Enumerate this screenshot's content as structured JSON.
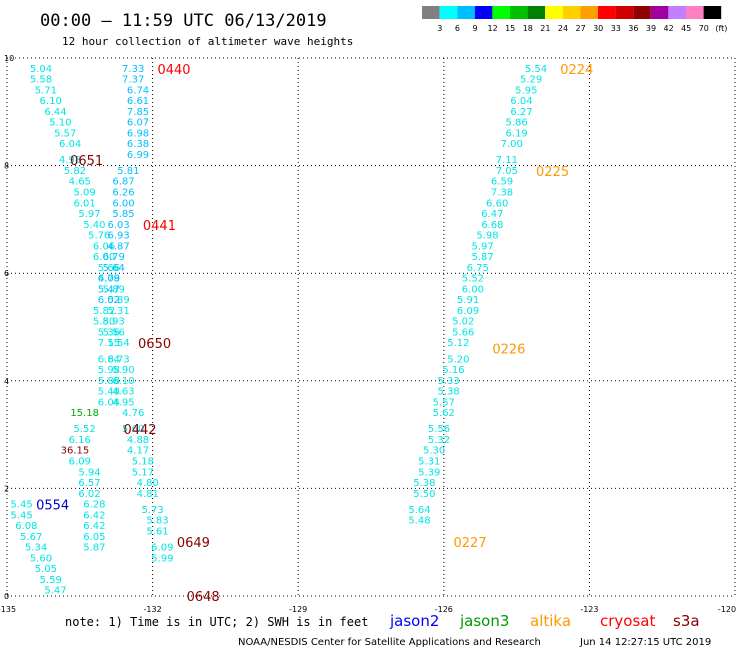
{
  "header": {
    "title": "00:00 – 11:59 UTC 06/13/2019",
    "subtitle": "12 hour collection of altimeter wave heights"
  },
  "legend": {
    "labels": [
      "3",
      "6",
      "9",
      "12",
      "15",
      "18",
      "21",
      "24",
      "27",
      "30",
      "33",
      "36",
      "39",
      "42",
      "45",
      "70",
      "(ft)"
    ],
    "colors": [
      "#808080",
      "#00ffff",
      "#00bfff",
      "#0000ff",
      "#00ff00",
      "#00c000",
      "#008000",
      "#ffff00",
      "#ffd000",
      "#ffa000",
      "#ff0000",
      "#d00000",
      "#900000",
      "#a000a0",
      "#c080ff",
      "#ff80c0",
      "#000000"
    ]
  },
  "satellites": [
    {
      "name": "jason2",
      "color": "#0000ff"
    },
    {
      "name": "jason3",
      "color": "#009900"
    },
    {
      "name": "altika",
      "color": "#ff9900"
    },
    {
      "name": "cryosat",
      "color": "#ff0000"
    },
    {
      "name": "s3a",
      "color": "#880000"
    }
  ],
  "footer": {
    "note": "note: 1) Time is in UTC; 2) SWH is in feet",
    "credit": "NOAA/NESDIS Center for Satellite Applications and Research",
    "timestamp": "Jun 14 12:27:15 UTC 2019"
  },
  "chart_data": {
    "type": "scatter",
    "xlim": [
      -135,
      -120
    ],
    "ylim": [
      0,
      10
    ],
    "x_ticks": [
      "-135",
      "-132",
      "-129",
      "-126",
      "-123",
      "-120"
    ],
    "y_ticks": [
      "0",
      "2",
      "4",
      "6",
      "8",
      "10"
    ],
    "grid": true,
    "colors": {
      "low": "#00e5e5",
      "mid": "#00bfff",
      "s3a": "#880000",
      "cryosat": "#ff0000",
      "altika": "#ff9900",
      "jason2": "#0000cc",
      "green": "#00aa00"
    },
    "point_series": [
      {
        "name": "A",
        "points": [
          [
            -134.3,
            9.8,
            "5.04",
            "low"
          ],
          [
            -134.3,
            9.6,
            "5.58",
            "low"
          ],
          [
            -134.2,
            9.4,
            "5.71",
            "low"
          ],
          [
            -134.1,
            9.2,
            "6.10",
            "low"
          ],
          [
            -134.0,
            9.0,
            "6.44",
            "low"
          ],
          [
            -133.9,
            8.8,
            "5.10",
            "low"
          ],
          [
            -133.8,
            8.6,
            "5.57",
            "low"
          ],
          [
            -133.7,
            8.4,
            "6.04",
            "low"
          ],
          [
            -133.7,
            8.1,
            "4.98",
            "low"
          ],
          [
            -133.6,
            7.9,
            "5.82",
            "low"
          ],
          [
            -133.5,
            7.7,
            "4.65",
            "low"
          ],
          [
            -133.4,
            7.5,
            "5.09",
            "low"
          ],
          [
            -133.4,
            7.3,
            "6.01",
            "low"
          ],
          [
            -133.3,
            7.1,
            "5.97",
            "low"
          ],
          [
            -133.2,
            6.9,
            "5.40",
            "low"
          ],
          [
            -133.1,
            6.7,
            "5.76",
            "low"
          ],
          [
            -133.0,
            6.5,
            "6.06",
            "low"
          ],
          [
            -133.0,
            6.3,
            "6.00",
            "low"
          ],
          [
            -132.9,
            6.1,
            "5.66",
            "low"
          ],
          [
            -132.9,
            5.9,
            "4.78",
            "low"
          ],
          [
            -132.8,
            5.7,
            "5.89",
            "low"
          ],
          [
            -132.7,
            5.5,
            "5.89",
            "low"
          ],
          [
            -132.7,
            5.3,
            "5.31",
            "low"
          ],
          [
            -132.8,
            5.1,
            "5.93",
            "low"
          ],
          [
            -132.8,
            4.9,
            "5.56",
            "low"
          ],
          [
            -132.9,
            4.7,
            "7.15",
            "low"
          ],
          [
            -132.9,
            4.4,
            "6.84",
            "low"
          ],
          [
            -132.9,
            4.2,
            "5.98",
            "low"
          ],
          [
            -132.9,
            4.0,
            "5.88",
            "low"
          ],
          [
            -132.9,
            3.8,
            "5.48",
            "low"
          ],
          [
            -132.9,
            3.6,
            "6.04",
            "low"
          ],
          [
            -133.4,
            3.4,
            "15.18",
            "green"
          ],
          [
            -133.4,
            3.1,
            "5.52",
            "low"
          ],
          [
            -133.5,
            2.9,
            "6.16",
            "low"
          ],
          [
            -133.6,
            2.7,
            "36.15",
            "s3a"
          ],
          [
            -133.5,
            2.5,
            "6.09",
            "low"
          ],
          [
            -133.3,
            2.3,
            "5.94",
            "low"
          ],
          [
            -133.3,
            2.1,
            "6.57",
            "low"
          ],
          [
            -133.3,
            1.9,
            "6.02",
            "low"
          ],
          [
            -133.2,
            1.7,
            "6.28",
            "low"
          ],
          [
            -133.2,
            1.5,
            "6.42",
            "low"
          ],
          [
            -133.2,
            1.3,
            "6.42",
            "low"
          ],
          [
            -133.2,
            1.1,
            "6.05",
            "low"
          ],
          [
            -133.2,
            0.9,
            "5.87",
            "low"
          ]
        ]
      },
      {
        "name": "B",
        "points": [
          [
            -132.4,
            9.8,
            "7.33",
            "mid"
          ],
          [
            -132.4,
            9.6,
            "7.37",
            "mid"
          ],
          [
            -132.3,
            9.4,
            "6.74",
            "mid"
          ],
          [
            -132.3,
            9.2,
            "6.61",
            "mid"
          ],
          [
            -132.3,
            9.0,
            "7.85",
            "mid"
          ],
          [
            -132.3,
            8.8,
            "6.07",
            "mid"
          ],
          [
            -132.3,
            8.6,
            "6.98",
            "mid"
          ],
          [
            -132.3,
            8.4,
            "6.38",
            "mid"
          ],
          [
            -132.3,
            8.2,
            "6.99",
            "mid"
          ],
          [
            -132.5,
            7.9,
            "5.81",
            "mid"
          ],
          [
            -132.6,
            7.7,
            "6.87",
            "mid"
          ],
          [
            -132.6,
            7.5,
            "6.26",
            "mid"
          ],
          [
            -132.6,
            7.3,
            "6.00",
            "mid"
          ],
          [
            -132.6,
            7.1,
            "5.85",
            "mid"
          ],
          [
            -132.7,
            6.9,
            "6.03",
            "mid"
          ],
          [
            -132.7,
            6.7,
            "6.93",
            "mid"
          ],
          [
            -132.7,
            6.5,
            "4.87",
            "mid"
          ],
          [
            -132.8,
            6.3,
            "6.79",
            "mid"
          ],
          [
            -132.8,
            6.1,
            "5.64",
            "mid"
          ],
          [
            -132.9,
            5.9,
            "6.09",
            "mid"
          ],
          [
            -132.9,
            5.7,
            "5.47",
            "mid"
          ],
          [
            -132.9,
            5.5,
            "6.02",
            "mid"
          ],
          [
            -133.0,
            5.3,
            "5.82",
            "low"
          ],
          [
            -133.0,
            5.1,
            "5.80",
            "low"
          ],
          [
            -132.9,
            4.9,
            "5.36",
            "low"
          ],
          [
            -132.7,
            4.7,
            "5.54",
            "low"
          ],
          [
            -132.7,
            4.4,
            "6.73",
            "low"
          ],
          [
            -132.6,
            4.2,
            "5.90",
            "low"
          ],
          [
            -132.6,
            4.0,
            "6.10",
            "low"
          ],
          [
            -132.6,
            3.8,
            "4.63",
            "low"
          ],
          [
            -132.6,
            3.6,
            "4.95",
            "low"
          ],
          [
            -132.4,
            3.4,
            "4.76",
            "low"
          ],
          [
            -132.4,
            3.1,
            "5.60",
            "low"
          ],
          [
            -132.3,
            2.9,
            "4.88",
            "low"
          ],
          [
            -132.3,
            2.7,
            "4.17",
            "low"
          ],
          [
            -132.2,
            2.5,
            "5.18",
            "low"
          ],
          [
            -132.2,
            2.3,
            "5.17",
            "low"
          ],
          [
            -132.1,
            2.1,
            "4.80",
            "low"
          ],
          [
            -132.1,
            1.9,
            "4.81",
            "low"
          ],
          [
            -132.0,
            1.6,
            "5.73",
            "low"
          ],
          [
            -131.9,
            1.4,
            "5.83",
            "low"
          ],
          [
            -131.9,
            1.2,
            "5.61",
            "low"
          ],
          [
            -131.8,
            0.9,
            "6.09",
            "low"
          ],
          [
            -131.8,
            0.7,
            "5.99",
            "low"
          ]
        ]
      },
      {
        "name": "C",
        "points": [
          [
            -134.7,
            1.7,
            "5.45",
            "low"
          ],
          [
            -134.7,
            1.5,
            "5.45",
            "low"
          ],
          [
            -134.6,
            1.3,
            "6.08",
            "low"
          ],
          [
            -134.5,
            1.1,
            "5.67",
            "low"
          ],
          [
            -134.4,
            0.9,
            "5.34",
            "low"
          ],
          [
            -134.3,
            0.7,
            "5.60",
            "low"
          ],
          [
            -134.2,
            0.5,
            "5.05",
            "low"
          ],
          [
            -134.1,
            0.3,
            "5.59",
            "low"
          ],
          [
            -134.0,
            0.1,
            "5.47",
            "low"
          ]
        ]
      },
      {
        "name": "D",
        "points": [
          [
            -124.1,
            9.8,
            "5.54",
            "low"
          ],
          [
            -124.2,
            9.6,
            "5.29",
            "low"
          ],
          [
            -124.3,
            9.4,
            "5.95",
            "low"
          ],
          [
            -124.4,
            9.2,
            "6.04",
            "low"
          ],
          [
            -124.4,
            9.0,
            "6.27",
            "low"
          ],
          [
            -124.5,
            8.8,
            "5.86",
            "low"
          ],
          [
            -124.5,
            8.6,
            "6.19",
            "low"
          ],
          [
            -124.6,
            8.4,
            "7.00",
            "low"
          ],
          [
            -124.7,
            8.1,
            "7.11",
            "low"
          ],
          [
            -124.7,
            7.9,
            "7.05",
            "low"
          ],
          [
            -124.8,
            7.7,
            "6.59",
            "low"
          ],
          [
            -124.8,
            7.5,
            "7.38",
            "low"
          ],
          [
            -124.9,
            7.3,
            "6.60",
            "low"
          ],
          [
            -125.0,
            7.1,
            "6.47",
            "low"
          ],
          [
            -125.0,
            6.9,
            "6.68",
            "low"
          ],
          [
            -125.1,
            6.7,
            "5.98",
            "low"
          ],
          [
            -125.2,
            6.5,
            "5.97",
            "low"
          ],
          [
            -125.2,
            6.3,
            "5.87",
            "low"
          ],
          [
            -125.3,
            6.1,
            "6.75",
            "low"
          ],
          [
            -125.4,
            5.9,
            "5.52",
            "low"
          ],
          [
            -125.4,
            5.7,
            "6.00",
            "low"
          ],
          [
            -125.5,
            5.5,
            "5.91",
            "low"
          ],
          [
            -125.5,
            5.3,
            "6.09",
            "low"
          ],
          [
            -125.6,
            5.1,
            "5.02",
            "low"
          ],
          [
            -125.6,
            4.9,
            "5.66",
            "low"
          ],
          [
            -125.7,
            4.7,
            "5.12",
            "low"
          ],
          [
            -125.7,
            4.4,
            "5.20",
            "low"
          ],
          [
            -125.8,
            4.2,
            "5.16",
            "low"
          ],
          [
            -125.9,
            4.0,
            "5.33",
            "low"
          ],
          [
            -125.9,
            3.8,
            "5.38",
            "low"
          ],
          [
            -126.0,
            3.6,
            "5.57",
            "low"
          ],
          [
            -126.0,
            3.4,
            "5.62",
            "low"
          ],
          [
            -126.1,
            3.1,
            "5.56",
            "low"
          ],
          [
            -126.1,
            2.9,
            "5.32",
            "low"
          ],
          [
            -126.2,
            2.7,
            "5.30",
            "low"
          ],
          [
            -126.3,
            2.5,
            "5.31",
            "low"
          ],
          [
            -126.3,
            2.3,
            "5.39",
            "low"
          ],
          [
            -126.4,
            2.1,
            "5.38",
            "low"
          ],
          [
            -126.4,
            1.9,
            "5.50",
            "low"
          ],
          [
            -126.5,
            1.6,
            "5.64",
            "low"
          ],
          [
            -126.5,
            1.4,
            "5.48",
            "low"
          ]
        ]
      }
    ],
    "pass_labels": [
      {
        "x": -131.9,
        "y": 9.8,
        "text": "0440",
        "color": "cryosat"
      },
      {
        "x": -123.6,
        "y": 9.8,
        "text": "0224",
        "color": "altika"
      },
      {
        "x": -133.7,
        "y": 8.1,
        "text": "0651",
        "color": "s3a"
      },
      {
        "x": -124.1,
        "y": 7.9,
        "text": "0225",
        "color": "altika"
      },
      {
        "x": -132.2,
        "y": 6.9,
        "text": "0441",
        "color": "cryosat"
      },
      {
        "x": -132.3,
        "y": 4.7,
        "text": "0650",
        "color": "s3a"
      },
      {
        "x": -125.0,
        "y": 4.6,
        "text": "0226",
        "color": "altika"
      },
      {
        "x": -132.6,
        "y": 3.1,
        "text": "0442",
        "color": "s3a"
      },
      {
        "x": -134.4,
        "y": 1.7,
        "text": "0554",
        "color": "jason2"
      },
      {
        "x": -131.5,
        "y": 1.0,
        "text": "0649",
        "color": "s3a"
      },
      {
        "x": -125.8,
        "y": 1.0,
        "text": "0227",
        "color": "altika"
      },
      {
        "x": -131.3,
        "y": 0.0,
        "text": "0648",
        "color": "s3a"
      }
    ]
  }
}
